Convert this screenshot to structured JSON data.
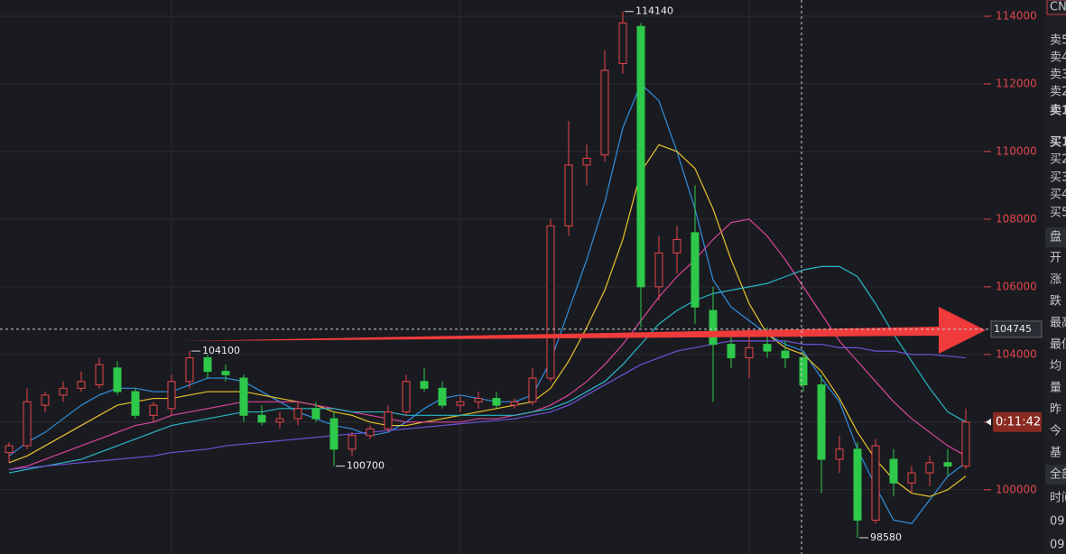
{
  "chart_data": {
    "type": "candlestick",
    "open": [
      101100,
      101300,
      102500,
      102800,
      103000,
      103100,
      103600,
      102900,
      102200,
      102400,
      103200,
      103900,
      103500,
      103300,
      102200,
      102000,
      102100,
      102400,
      102100,
      101200,
      101600,
      101800,
      102300,
      103200,
      103000,
      102500,
      102600,
      102700,
      102500,
      102600,
      103300,
      107800,
      109600,
      109900,
      112600,
      113700,
      106000,
      107000,
      107600,
      105300,
      104300,
      103900,
      104300,
      104100,
      103900,
      103100,
      100900,
      101200,
      99100,
      100900,
      100200,
      100500,
      100800,
      100700
    ],
    "high": [
      101400,
      103000,
      102900,
      103200,
      103500,
      103900,
      103800,
      103000,
      102600,
      103400,
      104100,
      104000,
      103700,
      103400,
      102500,
      102300,
      102600,
      102600,
      102300,
      101700,
      101900,
      102500,
      103400,
      103600,
      103200,
      102800,
      102900,
      102900,
      102700,
      103600,
      108000,
      110900,
      110200,
      113000,
      114140,
      113800,
      107500,
      107800,
      109000,
      106000,
      104700,
      104800,
      104800,
      104400,
      104100,
      103400,
      101600,
      101400,
      101500,
      101200,
      100700,
      101000,
      101200,
      102400
    ],
    "low": [
      100800,
      101200,
      102300,
      102600,
      102900,
      103000,
      102800,
      102100,
      102000,
      102200,
      103000,
      103300,
      103200,
      102000,
      101900,
      101800,
      101900,
      102000,
      100700,
      101000,
      101500,
      101700,
      102200,
      102900,
      102400,
      102300,
      102400,
      102400,
      102400,
      102500,
      103200,
      107500,
      109000,
      109700,
      112300,
      104800,
      105600,
      106400,
      104900,
      102600,
      103600,
      103300,
      103900,
      103600,
      102900,
      99900,
      100500,
      98580,
      99000,
      99800,
      99900,
      100100,
      100400,
      100600
    ],
    "close": [
      101300,
      102600,
      102800,
      103000,
      103200,
      103700,
      102900,
      102200,
      102500,
      103200,
      103900,
      103500,
      103400,
      102200,
      102000,
      102100,
      102400,
      102100,
      101200,
      101600,
      101800,
      102300,
      103200,
      103000,
      102500,
      102600,
      102700,
      102500,
      102600,
      103300,
      107800,
      109600,
      109800,
      112400,
      113800,
      106000,
      107000,
      107400,
      105400,
      104300,
      103900,
      104200,
      104100,
      103900,
      103100,
      100900,
      101200,
      99100,
      101300,
      100200,
      100500,
      100800,
      100700,
      102000
    ],
    "up_color": "#e8464a",
    "down_color": "#2ec84a",
    "series": [
      {
        "color": "#2f8fe0",
        "values": [
          101000,
          101400,
          101700,
          102100,
          102500,
          102800,
          103000,
          103000,
          102900,
          102900,
          103100,
          103300,
          103300,
          103200,
          102900,
          102600,
          102300,
          102100,
          101900,
          101800,
          101600,
          101700,
          102000,
          102400,
          102700,
          102800,
          102700,
          102600,
          102600,
          102800,
          103800,
          105300,
          106800,
          108500,
          110700,
          112000,
          111500,
          110000,
          108300,
          106200,
          105400,
          105000,
          104600,
          104300,
          104100,
          103300,
          102600,
          101200,
          100100,
          99100,
          99000,
          99700,
          100400,
          100800
        ]
      },
      {
        "color": "#e8c22e",
        "values": [
          100800,
          101000,
          101300,
          101600,
          101900,
          102200,
          102500,
          102600,
          102700,
          102700,
          102800,
          102900,
          102900,
          102900,
          102800,
          102700,
          102600,
          102500,
          102300,
          102200,
          102000,
          101900,
          101900,
          102000,
          102100,
          102200,
          102300,
          102400,
          102500,
          102600,
          103000,
          103800,
          104800,
          105900,
          107400,
          109400,
          110200,
          110000,
          109500,
          108300,
          106800,
          105500,
          104600,
          104200,
          104000,
          103500,
          102700,
          101700,
          100900,
          100300,
          99900,
          99800,
          100000,
          100400
        ]
      },
      {
        "color": "#d9459b",
        "values": [
          100600,
          100700,
          100900,
          101100,
          101300,
          101500,
          101700,
          101900,
          102000,
          102200,
          102300,
          102400,
          102500,
          102600,
          102600,
          102600,
          102600,
          102500,
          102400,
          102300,
          102200,
          102100,
          102000,
          102000,
          102000,
          102000,
          102100,
          102100,
          102200,
          102300,
          102500,
          102800,
          103200,
          103700,
          104300,
          105000,
          105700,
          106300,
          106800,
          107400,
          107900,
          108000,
          107500,
          106800,
          106000,
          105200,
          104400,
          103800,
          103200,
          102600,
          102100,
          101700,
          101300,
          101000
        ]
      },
      {
        "color": "#29b6c6",
        "values": [
          100500,
          100600,
          100700,
          100800,
          100900,
          101100,
          101300,
          101500,
          101700,
          101900,
          102000,
          102100,
          102200,
          102300,
          102300,
          102400,
          102400,
          102400,
          102400,
          102300,
          102300,
          102300,
          102200,
          102200,
          102200,
          102200,
          102200,
          102200,
          102200,
          102300,
          102400,
          102600,
          102900,
          103200,
          103700,
          104300,
          104900,
          105300,
          105600,
          105800,
          105900,
          106000,
          106100,
          106300,
          106500,
          106600,
          106600,
          106300,
          105500,
          104600,
          103800,
          103000,
          102300,
          102000
        ]
      },
      {
        "color": "#6a54d8",
        "values": [
          100600,
          100650,
          100700,
          100750,
          100800,
          100850,
          100900,
          100950,
          101000,
          101100,
          101150,
          101200,
          101300,
          101350,
          101400,
          101450,
          101500,
          101550,
          101600,
          101650,
          101700,
          101750,
          101800,
          101850,
          101900,
          101950,
          102000,
          102050,
          102100,
          102200,
          102300,
          102500,
          102800,
          103100,
          103400,
          103700,
          103900,
          104100,
          104200,
          104300,
          104400,
          104400,
          104400,
          104400,
          104300,
          104300,
          104200,
          104200,
          104100,
          104100,
          104000,
          104000,
          103950,
          103900
        ]
      }
    ],
    "ylim": [
      98100,
      114480
    ],
    "yticks": [
      100000,
      102000,
      104000,
      106000,
      108000,
      110000,
      112000,
      114000
    ],
    "grid": true,
    "annotations": [
      {
        "value": 104100,
        "candle": 10
      },
      {
        "value": 100700,
        "candle": 18
      },
      {
        "value": 114140,
        "candle": 34
      },
      {
        "value": 98580,
        "candle": 47
      }
    ],
    "cursor_price": 104745,
    "countdown": "0:11:42"
  },
  "panel": {
    "labels": [
      "CN",
      "卖5",
      "卖4",
      "卖3",
      "卖2",
      "卖1",
      "买1",
      "买2",
      "买3",
      "买4",
      "买5",
      "盘",
      "开",
      "涨",
      "跌",
      "最高",
      "最低",
      "均",
      "量",
      "昨",
      "今",
      "基",
      "全部",
      "时间",
      "09:",
      "09:"
    ]
  }
}
